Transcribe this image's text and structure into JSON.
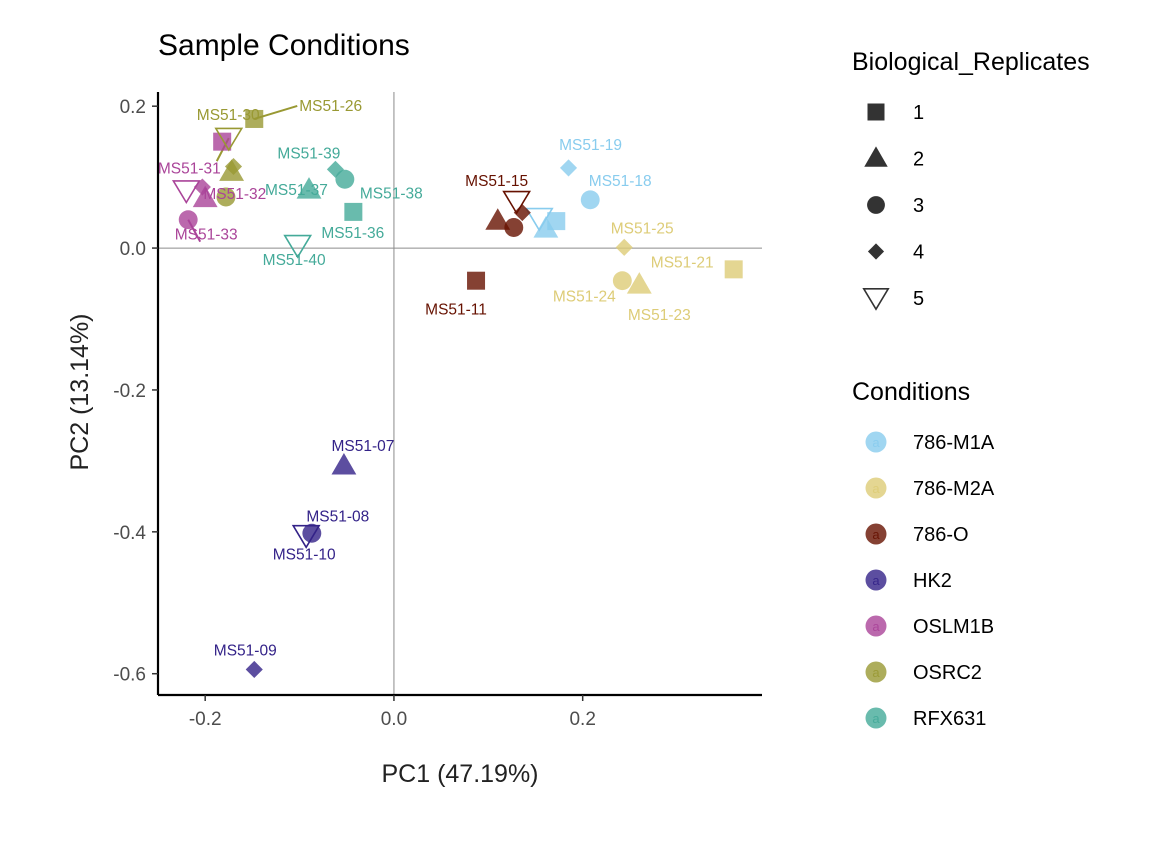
{
  "chart_data": {
    "type": "scatter",
    "title": "Sample Conditions",
    "xlabel": "PC1 (47.19%)",
    "ylabel": "PC2 (13.14%)",
    "xlim": [
      -0.25,
      0.39
    ],
    "ylim": [
      -0.63,
      0.22
    ],
    "x_ticks": [
      -0.2,
      0.0,
      0.2
    ],
    "x_tick_labels": [
      "-0.2",
      "0.0",
      "0.2"
    ],
    "y_ticks": [
      -0.6,
      -0.4,
      -0.2,
      0.0,
      0.2
    ],
    "y_tick_labels": [
      "-0.6",
      "-0.4",
      "-0.2",
      "0.0",
      "0.2"
    ],
    "reference_lines": {
      "x": 0,
      "y": 0
    },
    "grid": false,
    "legend_position": "right",
    "shape_legend": {
      "title": "Biological_Replicates",
      "items": [
        {
          "label": "1",
          "shape": "square"
        },
        {
          "label": "2",
          "shape": "triangle"
        },
        {
          "label": "3",
          "shape": "circle"
        },
        {
          "label": "4",
          "shape": "diamond"
        },
        {
          "label": "5",
          "shape": "triangle-down-open"
        }
      ]
    },
    "color_legend": {
      "title": "Conditions",
      "glyph": "a",
      "items": [
        {
          "label": "786-M1A",
          "color": "#88CCEE"
        },
        {
          "label": "786-M2A",
          "color": "#DDCC77"
        },
        {
          "label": "786-O",
          "color": "#661100"
        },
        {
          "label": "HK2",
          "color": "#332288"
        },
        {
          "label": "OSLM1B",
          "color": "#AA4499"
        },
        {
          "label": "OSRC2",
          "color": "#999933"
        },
        {
          "label": "RFX631",
          "color": "#44AA99"
        }
      ]
    },
    "points": [
      {
        "condition": "786-M1A",
        "replicate": "1",
        "x": 0.172,
        "y": 0.038
      },
      {
        "condition": "786-M1A",
        "replicate": "2",
        "x": 0.161,
        "y": 0.027
      },
      {
        "condition": "786-M1A",
        "replicate": "3",
        "x": 0.208,
        "y": 0.068,
        "label": "MS51-18"
      },
      {
        "condition": "786-M1A",
        "replicate": "4",
        "x": 0.185,
        "y": 0.113,
        "label": "MS51-19"
      },
      {
        "condition": "786-M1A",
        "replicate": "5",
        "x": 0.154,
        "y": 0.042
      },
      {
        "condition": "786-M2A",
        "replicate": "1",
        "x": 0.36,
        "y": -0.03,
        "label": "MS51-21"
      },
      {
        "condition": "786-M2A",
        "replicate": "2",
        "x": 0.26,
        "y": -0.052,
        "label": "MS51-23"
      },
      {
        "condition": "786-M2A",
        "replicate": "3",
        "x": 0.242,
        "y": -0.046,
        "label": "MS51-24"
      },
      {
        "condition": "786-M2A",
        "replicate": "4",
        "x": 0.244,
        "y": 0.001,
        "label": "MS51-25"
      },
      {
        "condition": "786-O",
        "replicate": "1",
        "x": 0.087,
        "y": -0.046,
        "label": "MS51-11"
      },
      {
        "condition": "786-O",
        "replicate": "2",
        "x": 0.11,
        "y": 0.038
      },
      {
        "condition": "786-O",
        "replicate": "3",
        "x": 0.127,
        "y": 0.029
      },
      {
        "condition": "786-O",
        "replicate": "4",
        "x": 0.136,
        "y": 0.05
      },
      {
        "condition": "786-O",
        "replicate": "5",
        "x": 0.13,
        "y": 0.066,
        "label": "MS51-15"
      },
      {
        "condition": "HK2",
        "replicate": "2",
        "x": -0.053,
        "y": -0.307,
        "label": "MS51-07"
      },
      {
        "condition": "HK2",
        "replicate": "3",
        "x": -0.087,
        "y": -0.402,
        "label": "MS51-08"
      },
      {
        "condition": "HK2",
        "replicate": "4",
        "x": -0.148,
        "y": -0.594,
        "label": "MS51-09"
      },
      {
        "condition": "HK2",
        "replicate": "5",
        "x": -0.093,
        "y": -0.405,
        "label": "MS51-10"
      },
      {
        "condition": "OSLM1B",
        "replicate": "1",
        "x": -0.182,
        "y": 0.15
      },
      {
        "condition": "OSLM1B",
        "replicate": "2",
        "x": -0.2,
        "y": 0.07
      },
      {
        "condition": "OSLM1B",
        "replicate": "3",
        "x": -0.218,
        "y": 0.04,
        "label": "MS51-33"
      },
      {
        "condition": "OSLM1B",
        "replicate": "4",
        "x": -0.203,
        "y": 0.086,
        "label": "MS51-32"
      },
      {
        "condition": "OSLM1B",
        "replicate": "5",
        "x": -0.22,
        "y": 0.081,
        "label": "MS51-31"
      },
      {
        "condition": "OSRC2",
        "replicate": "1",
        "x": -0.148,
        "y": 0.182,
        "label": "MS51-26"
      },
      {
        "condition": "OSRC2",
        "replicate": "2",
        "x": -0.172,
        "y": 0.107
      },
      {
        "condition": "OSRC2",
        "replicate": "3",
        "x": -0.178,
        "y": 0.072
      },
      {
        "condition": "OSRC2",
        "replicate": "4",
        "x": -0.17,
        "y": 0.115
      },
      {
        "condition": "OSRC2",
        "replicate": "5",
        "x": -0.175,
        "y": 0.155,
        "label": "MS51-30"
      },
      {
        "condition": "RFX631",
        "replicate": "1",
        "x": -0.043,
        "y": 0.051,
        "label": "MS51-36"
      },
      {
        "condition": "RFX631",
        "replicate": "2",
        "x": -0.09,
        "y": 0.082,
        "label": "MS51-37"
      },
      {
        "condition": "RFX631",
        "replicate": "3",
        "x": -0.052,
        "y": 0.097,
        "label": "MS51-38"
      },
      {
        "condition": "RFX631",
        "replicate": "4",
        "x": -0.062,
        "y": 0.111,
        "label": "MS51-39"
      },
      {
        "condition": "RFX631",
        "replicate": "5",
        "x": -0.102,
        "y": 0.004,
        "label": "MS51-40"
      }
    ]
  }
}
